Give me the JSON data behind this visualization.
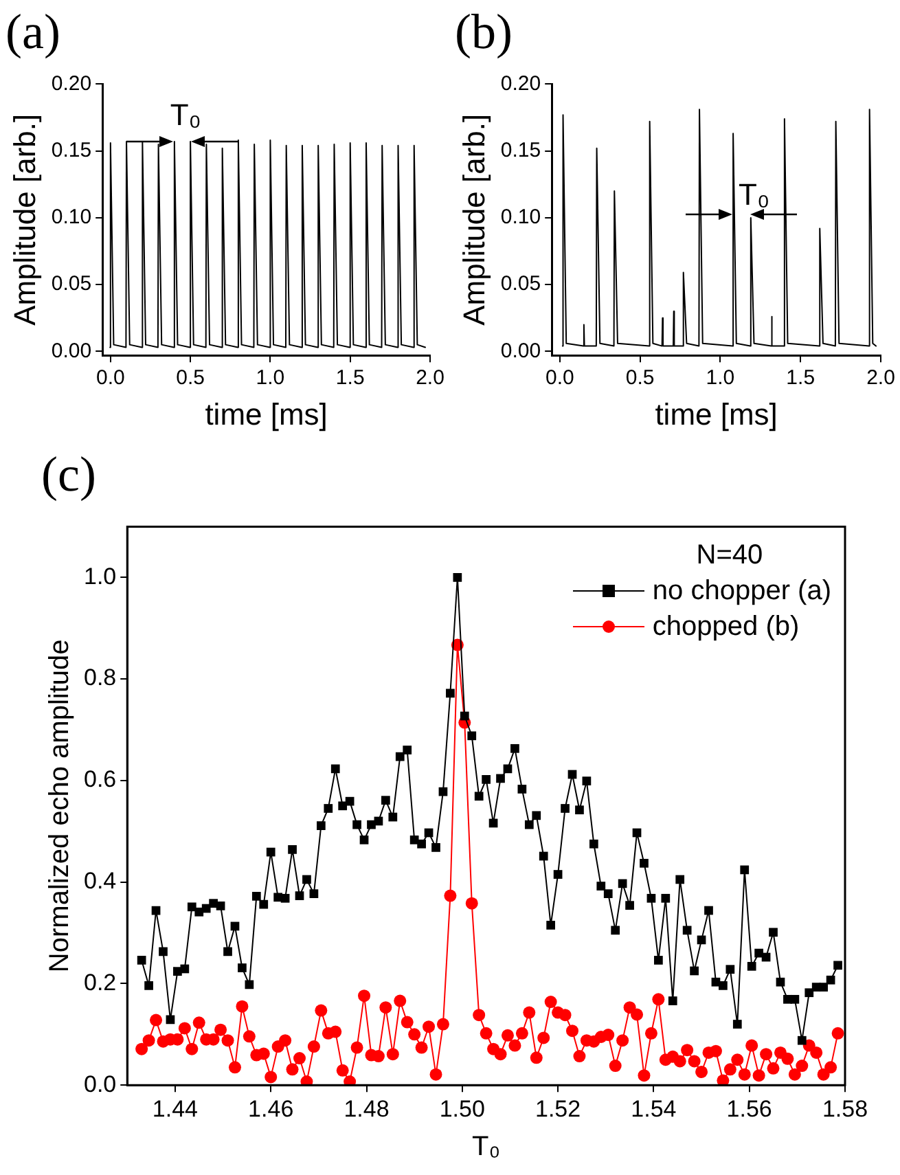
{
  "chart_data": [
    {
      "type": "line",
      "title": "(a)",
      "xlabel": "time [ms]",
      "ylabel": "Amplitude [arb.]",
      "xlim": [
        -0.05,
        2.0
      ],
      "ylim": [
        -0.003,
        0.2
      ],
      "xticks": [
        {
          "value": 0,
          "label": "0.0"
        },
        {
          "value": 0.5,
          "label": "0.5"
        },
        {
          "value": 1,
          "label": "1.0"
        },
        {
          "value": 1.5,
          "label": "1.5"
        },
        {
          "value": 2,
          "label": "2.0"
        }
      ],
      "yticks": [
        {
          "value": 0,
          "label": "0.00"
        },
        {
          "value": 0.05,
          "label": "0.05"
        },
        {
          "value": 0.1,
          "label": "0.10"
        },
        {
          "value": 0.15,
          "label": "0.15"
        },
        {
          "value": 0.2,
          "label": "0.20"
        }
      ],
      "annotations": [
        "T₀"
      ],
      "series": [
        {
          "color": "#000000",
          "x": [
            -0.003,
            0,
            0.02,
            0.097,
            0.1,
            0.12,
            0.197,
            0.2,
            0.22,
            0.297,
            0.3,
            0.32,
            0.397,
            0.4,
            0.42,
            0.497,
            0.5,
            0.52,
            0.597,
            0.6,
            0.62,
            0.697,
            0.7,
            0.72,
            0.797,
            0.8,
            0.82,
            0.897,
            0.9,
            0.92,
            0.997,
            1.0,
            1.02,
            1.097,
            1.1,
            1.12,
            1.197,
            1.2,
            1.22,
            1.297,
            1.3,
            1.32,
            1.397,
            1.4,
            1.42,
            1.497,
            1.5,
            1.52,
            1.597,
            1.6,
            1.62,
            1.697,
            1.7,
            1.72,
            1.797,
            1.8,
            1.82,
            1.897,
            1.9,
            1.92,
            1.97
          ],
          "values": [
            0.003,
            0.156,
            0.005,
            0.003,
            0.157,
            0.005,
            0.003,
            0.157,
            0.005,
            0.003,
            0.155,
            0.005,
            0.003,
            0.157,
            0.005,
            0.003,
            0.157,
            0.005,
            0.003,
            0.155,
            0.005,
            0.003,
            0.152,
            0.005,
            0.003,
            0.158,
            0.005,
            0.003,
            0.155,
            0.005,
            0.003,
            0.158,
            0.005,
            0.003,
            0.154,
            0.005,
            0.003,
            0.154,
            0.005,
            0.003,
            0.154,
            0.005,
            0.003,
            0.155,
            0.005,
            0.003,
            0.156,
            0.005,
            0.003,
            0.156,
            0.005,
            0.003,
            0.154,
            0.005,
            0.003,
            0.154,
            0.005,
            0.003,
            0.154,
            0.005,
            0.003
          ]
        }
      ]
    },
    {
      "type": "line",
      "title": "(b)",
      "xlabel": "time [ms]",
      "ylabel": "Amplitude [arb.]",
      "xlim": [
        -0.05,
        2.0
      ],
      "ylim": [
        -0.003,
        0.2
      ],
      "xticks": [
        {
          "value": 0,
          "label": "0.0"
        },
        {
          "value": 0.5,
          "label": "0.5"
        },
        {
          "value": 1,
          "label": "1.0"
        },
        {
          "value": 1.5,
          "label": "1.5"
        },
        {
          "value": 2,
          "label": "2.0"
        }
      ],
      "yticks": [
        {
          "value": 0,
          "label": "0.00"
        },
        {
          "value": 0.05,
          "label": "0.05"
        },
        {
          "value": 0.1,
          "label": "0.10"
        },
        {
          "value": 0.15,
          "label": "0.15"
        },
        {
          "value": 0.2,
          "label": "0.20"
        }
      ],
      "annotations": [
        "T₀"
      ],
      "series": [
        {
          "color": "#000000",
          "x": [
            0.017,
            0.02,
            0.04,
            0.147,
            0.15,
            0.153,
            0.227,
            0.23,
            0.25,
            0.337,
            0.34,
            0.36,
            0.557,
            0.56,
            0.58,
            0.637,
            0.64,
            0.643,
            0.707,
            0.71,
            0.713,
            0.767,
            0.77,
            0.79,
            0.867,
            0.87,
            0.89,
            1.077,
            1.08,
            1.1,
            1.187,
            1.19,
            1.21,
            1.317,
            1.32,
            1.323,
            1.397,
            1.4,
            1.42,
            1.617,
            1.62,
            1.64,
            1.717,
            1.72,
            1.74,
            1.927,
            1.93,
            1.95,
            1.97
          ],
          "values": [
            0.004,
            0.177,
            0.006,
            0.004,
            0.02,
            0.004,
            0.004,
            0.152,
            0.006,
            0.004,
            0.12,
            0.006,
            0.004,
            0.172,
            0.006,
            0.004,
            0.025,
            0.004,
            0.004,
            0.03,
            0.004,
            0.004,
            0.059,
            0.006,
            0.004,
            0.181,
            0.006,
            0.004,
            0.163,
            0.006,
            0.004,
            0.1,
            0.006,
            0.004,
            0.026,
            0.004,
            0.004,
            0.174,
            0.006,
            0.004,
            0.092,
            0.006,
            0.004,
            0.172,
            0.006,
            0.004,
            0.181,
            0.006,
            0.004
          ]
        }
      ]
    },
    {
      "type": "line",
      "title": "(c)",
      "xlabel": "T₀",
      "ylabel": "Normalized echo amplitude",
      "xlim": [
        1.43,
        1.58
      ],
      "ylim": [
        0,
        1.1
      ],
      "xticks": [
        1.44,
        1.46,
        1.48,
        {
          "value": 1.5,
          "label": "1.50"
        },
        1.52,
        1.54,
        1.56,
        1.58
      ],
      "yticks": [
        {
          "value": 0,
          "label": "0.0"
        },
        {
          "value": 0.2,
          "label": "0.2"
        },
        {
          "value": 0.4,
          "label": "0.4"
        },
        {
          "value": 0.6,
          "label": "0.6"
        },
        {
          "value": 0.8,
          "label": "0.8"
        },
        {
          "value": 1,
          "label": "1.0"
        }
      ],
      "legend": "top right",
      "legend_title": "N=40",
      "x": [
        1.433,
        1.4345,
        1.436,
        1.4375,
        1.439,
        1.4405,
        1.442,
        1.4435,
        1.445,
        1.4465,
        1.448,
        1.4495,
        1.451,
        1.4525,
        1.454,
        1.4555,
        1.457,
        1.4585,
        1.46,
        1.4615,
        1.463,
        1.4645,
        1.466,
        1.4675,
        1.469,
        1.4705,
        1.472,
        1.4735,
        1.475,
        1.4765,
        1.478,
        1.4795,
        1.481,
        1.4825,
        1.484,
        1.4855,
        1.487,
        1.4885,
        1.49,
        1.4915,
        1.493,
        1.4945,
        1.496,
        1.4975,
        1.499,
        1.5005,
        1.502,
        1.5035,
        1.505,
        1.5065,
        1.508,
        1.5095,
        1.511,
        1.5125,
        1.514,
        1.5155,
        1.517,
        1.5185,
        1.52,
        1.5215,
        1.523,
        1.5245,
        1.526,
        1.5275,
        1.529,
        1.5305,
        1.532,
        1.5335,
        1.535,
        1.5365,
        1.538,
        1.5395,
        1.541,
        1.5425,
        1.544,
        1.5455,
        1.547,
        1.5485,
        1.55,
        1.5515,
        1.553,
        1.5545,
        1.556,
        1.5575,
        1.559,
        1.5605,
        1.562,
        1.5635,
        1.565,
        1.5665,
        1.568,
        1.5695,
        1.571,
        1.5725,
        1.574,
        1.5755,
        1.577,
        1.5785
      ],
      "series": [
        {
          "name": "no chopper (a)",
          "color": "#000000",
          "marker": "square",
          "values": [
            0.246,
            0.196,
            0.344,
            0.263,
            0.129,
            0.224,
            0.229,
            0.351,
            0.341,
            0.348,
            0.358,
            0.353,
            0.263,
            0.313,
            0.231,
            0.198,
            0.372,
            0.356,
            0.459,
            0.37,
            0.368,
            0.464,
            0.373,
            0.405,
            0.377,
            0.511,
            0.545,
            0.623,
            0.55,
            0.559,
            0.513,
            0.483,
            0.513,
            0.52,
            0.561,
            0.528,
            0.647,
            0.66,
            0.483,
            0.475,
            0.497,
            0.468,
            0.578,
            0.772,
            1.0,
            0.727,
            0.688,
            0.569,
            0.602,
            0.516,
            0.604,
            0.623,
            0.663,
            0.583,
            0.513,
            0.531,
            0.451,
            0.315,
            0.415,
            0.545,
            0.612,
            0.542,
            0.599,
            0.475,
            0.392,
            0.377,
            0.305,
            0.397,
            0.354,
            0.497,
            0.437,
            0.368,
            0.246,
            0.368,
            0.166,
            0.405,
            0.305,
            0.225,
            0.286,
            0.344,
            0.203,
            0.196,
            0.228,
            0.12,
            0.424,
            0.234,
            0.26,
            0.252,
            0.301,
            0.203,
            0.169,
            0.169,
            0.088,
            0.182,
            0.193,
            0.193,
            0.207,
            0.236
          ]
        },
        {
          "name": "chopped (b)",
          "color": "#ff0000",
          "marker": "circle",
          "values": [
            0.071,
            0.088,
            0.128,
            0.086,
            0.09,
            0.09,
            0.112,
            0.071,
            0.123,
            0.09,
            0.09,
            0.109,
            0.088,
            0.035,
            0.155,
            0.096,
            0.059,
            0.062,
            0.016,
            0.076,
            0.088,
            0.031,
            0.053,
            0.007,
            0.076,
            0.147,
            0.102,
            0.105,
            0.029,
            0.007,
            0.074,
            0.176,
            0.059,
            0.057,
            0.153,
            0.061,
            0.166,
            0.124,
            0.1,
            0.074,
            0.115,
            0.021,
            0.12,
            0.373,
            0.867,
            0.714,
            0.358,
            0.138,
            0.102,
            0.071,
            0.061,
            0.098,
            0.078,
            0.102,
            0.143,
            0.054,
            0.093,
            0.164,
            0.143,
            0.138,
            0.107,
            0.057,
            0.088,
            0.086,
            0.095,
            0.099,
            0.038,
            0.088,
            0.153,
            0.139,
            0.019,
            0.102,
            0.169,
            0.05,
            0.056,
            0.047,
            0.069,
            0.047,
            0.026,
            0.064,
            0.067,
            0.009,
            0.031,
            0.05,
            0.021,
            0.078,
            0.019,
            0.061,
            0.033,
            0.064,
            0.052,
            0.021,
            0.038,
            0.078,
            0.064,
            0.021,
            0.035,
            0.102
          ]
        }
      ]
    }
  ]
}
